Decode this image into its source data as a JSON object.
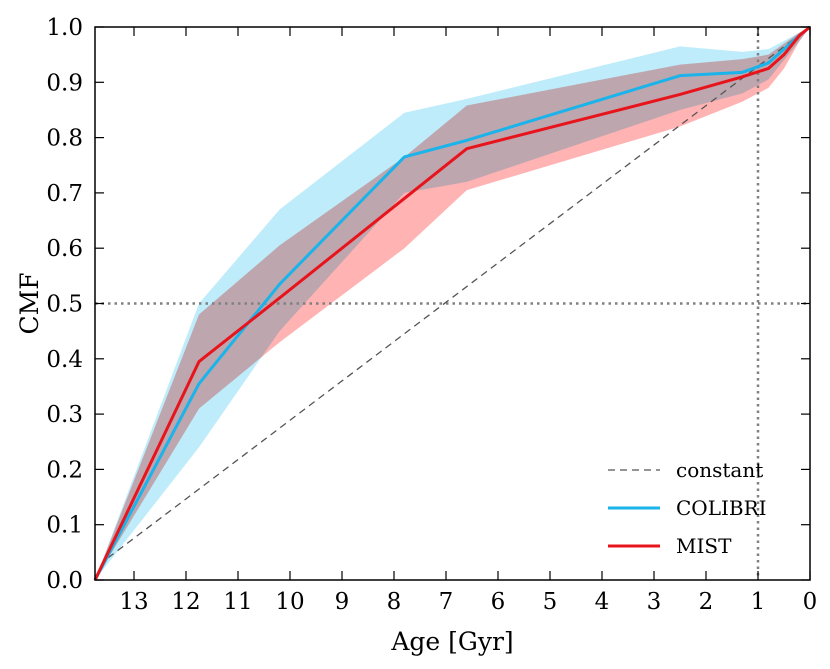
{
  "chart_data": {
    "type": "line",
    "title": "",
    "xlabel": "Age [Gyr]",
    "ylabel": "CMF",
    "xlim": [
      13.75,
      0
    ],
    "ylim": [
      0,
      1
    ],
    "x_ticks": [
      13,
      12,
      11,
      10,
      9,
      8,
      7,
      6,
      5,
      4,
      3,
      2,
      1,
      0
    ],
    "x_tick_labels": [
      "13",
      "12",
      "11",
      "10",
      "9",
      "8",
      "7",
      "6",
      "5",
      "4",
      "3",
      "2",
      "1",
      "0"
    ],
    "y_ticks": [
      0.0,
      0.1,
      0.2,
      0.3,
      0.4,
      0.5,
      0.6,
      0.7,
      0.8,
      0.9,
      1.0
    ],
    "y_tick_labels": [
      "0.0",
      "0.1",
      "0.2",
      "0.3",
      "0.4",
      "0.5",
      "0.6",
      "0.7",
      "0.8",
      "0.9",
      "1.0"
    ],
    "grid": false,
    "legend_position": "bottom-right",
    "reference_lines": [
      {
        "orientation": "horizontal",
        "value": 0.5,
        "style": "dotted",
        "color": "#808080"
      },
      {
        "orientation": "vertical",
        "value": 1.0,
        "style": "dotted",
        "color": "#808080"
      }
    ],
    "series": [
      {
        "name": "constant",
        "color": "#555555",
        "style": "dashed",
        "x": [
          13.5,
          0.0
        ],
        "y": [
          0.04,
          1.0
        ]
      },
      {
        "name": "COLIBRI",
        "color": "#1ab3ea",
        "style": "solid",
        "band_color": "#a8e6f8",
        "x": [
          13.75,
          11.75,
          10.2,
          7.8,
          6.6,
          2.5,
          1.3,
          0.8,
          0.5,
          0.2,
          0.0
        ],
        "y": [
          0.0,
          0.355,
          0.535,
          0.765,
          0.795,
          0.912,
          0.918,
          0.935,
          0.96,
          0.985,
          1.0
        ],
        "band_upper": [
          0.0,
          0.5,
          0.67,
          0.845,
          0.87,
          0.965,
          0.955,
          0.96,
          0.975,
          0.99,
          1.0
        ],
        "band_lower": [
          0.0,
          0.24,
          0.45,
          0.7,
          0.72,
          0.85,
          0.88,
          0.905,
          0.94,
          0.975,
          1.0
        ]
      },
      {
        "name": "MIST",
        "color": "#e8141c",
        "style": "solid",
        "band_color": "#ff9999",
        "x": [
          13.75,
          11.75,
          10.2,
          7.8,
          6.6,
          2.5,
          1.3,
          0.8,
          0.5,
          0.2,
          0.0
        ],
        "y": [
          0.0,
          0.395,
          0.51,
          0.69,
          0.78,
          0.878,
          0.91,
          0.925,
          0.95,
          0.985,
          1.0
        ],
        "band_upper": [
          0.0,
          0.48,
          0.605,
          0.765,
          0.858,
          0.932,
          0.942,
          0.95,
          0.97,
          0.99,
          1.0
        ],
        "band_lower": [
          0.0,
          0.31,
          0.43,
          0.6,
          0.705,
          0.82,
          0.865,
          0.89,
          0.925,
          0.975,
          1.0
        ]
      }
    ]
  }
}
